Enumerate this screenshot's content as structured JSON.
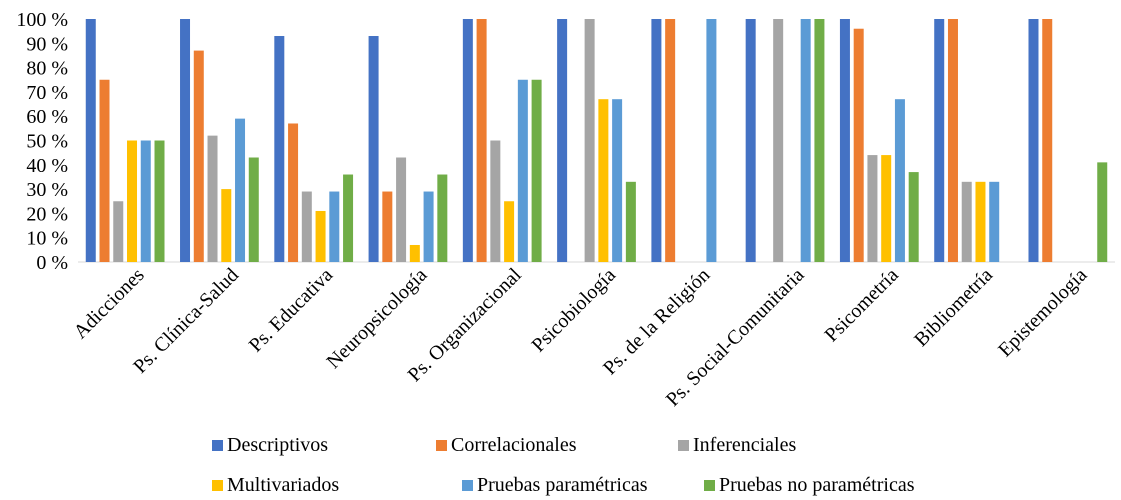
{
  "chart_data": {
    "type": "bar",
    "categories": [
      "Adicciones",
      "Ps. Clínica-Salud",
      "Ps. Educativa",
      "Neuropsicología",
      "Ps. Organizacional",
      "Psicobiología",
      "Ps. de la Religión",
      "Ps. Social-Comunitaria",
      "Psicometría",
      "Bibliometría",
      "Epistemología"
    ],
    "y_ticks": [
      "0 %",
      "10 %",
      "20 %",
      "30 %",
      "40 %",
      "50 %",
      "60 %",
      "70 %",
      "80 %",
      "90 %",
      "100 %"
    ],
    "ylim": [
      0,
      100
    ],
    "grid": false,
    "legend_position": "bottom",
    "series": [
      {
        "name": "Descriptivos",
        "color": "#4472C4",
        "values": [
          100,
          100,
          93,
          93,
          100,
          100,
          100,
          100,
          100,
          100,
          100
        ]
      },
      {
        "name": "Correlacionales",
        "color": "#ED7D31",
        "values": [
          75,
          87,
          57,
          29,
          100,
          0,
          100,
          0,
          96,
          100,
          100
        ]
      },
      {
        "name": "Inferenciales",
        "color": "#A5A5A5",
        "values": [
          25,
          52,
          29,
          43,
          50,
          100,
          0,
          100,
          44,
          33,
          0
        ]
      },
      {
        "name": "Multivariados",
        "color": "#FFC000",
        "values": [
          50,
          30,
          21,
          7,
          25,
          67,
          0,
          0,
          44,
          33,
          0
        ]
      },
      {
        "name": "Pruebas paramétricas",
        "color": "#5B9BD5",
        "values": [
          50,
          59,
          29,
          29,
          75,
          67,
          100,
          100,
          67,
          33,
          0
        ]
      },
      {
        "name": "Pruebas no paramétricas",
        "color": "#70AD47",
        "values": [
          50,
          43,
          36,
          36,
          75,
          33,
          0,
          100,
          37,
          0,
          41
        ]
      }
    ]
  }
}
